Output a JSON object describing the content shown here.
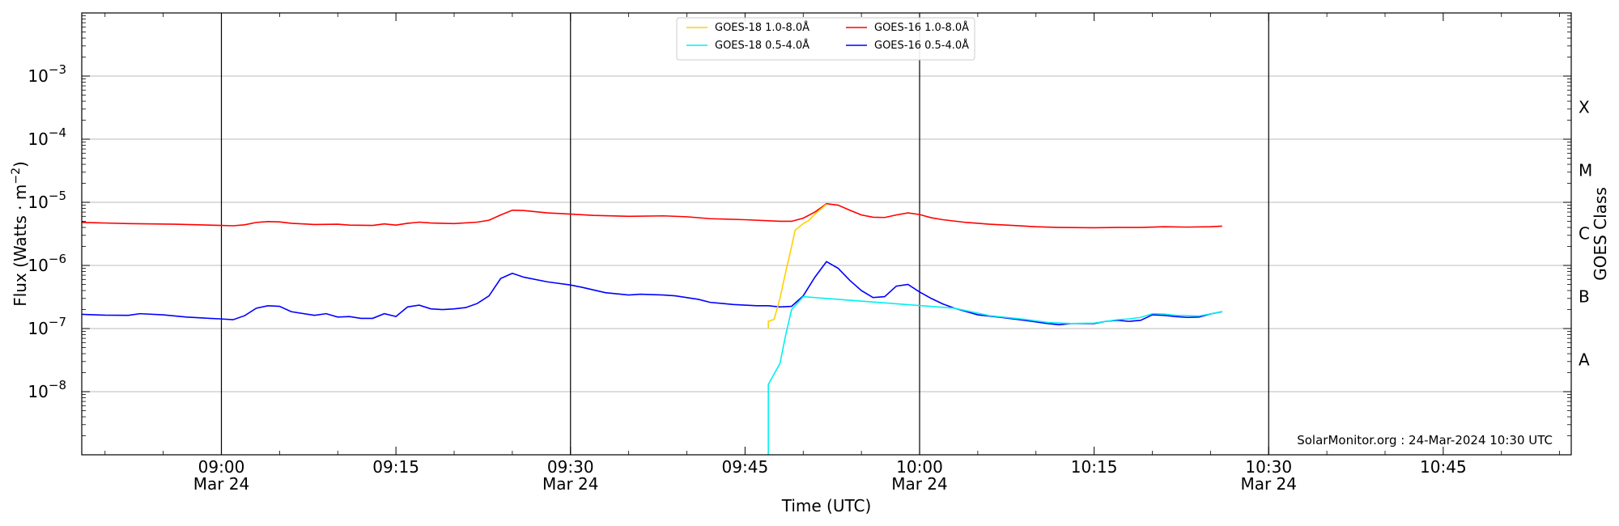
{
  "chart_data": {
    "type": "line",
    "title": "",
    "xlabel": "Time (UTC)",
    "ylabel_main": "Flux (Watts · m",
    "ylabel_exp": "−2",
    "ylabel_close": ")",
    "y2label": "GOES Class",
    "yscale": "log",
    "ylim": [
      1e-09,
      0.01
    ],
    "xlim": [
      "08:48",
      "10:56"
    ],
    "grid": "horizontal at decades; vertical at half-hours",
    "legend_position": "top-center",
    "credit": "SolarMonitor.org : 24-Mar-2024 10:30 UTC",
    "x_ticks": [
      {
        "time": "09:00",
        "label": "09:00",
        "sublabel": "Mar 24"
      },
      {
        "time": "09:15",
        "label": "09:15",
        "sublabel": ""
      },
      {
        "time": "09:30",
        "label": "09:30",
        "sublabel": "Mar 24"
      },
      {
        "time": "09:45",
        "label": "09:45",
        "sublabel": ""
      },
      {
        "time": "10:00",
        "label": "10:00",
        "sublabel": "Mar 24"
      },
      {
        "time": "10:15",
        "label": "10:15",
        "sublabel": ""
      },
      {
        "time": "10:30",
        "label": "10:30",
        "sublabel": "Mar 24"
      },
      {
        "time": "10:45",
        "label": "10:45",
        "sublabel": ""
      }
    ],
    "vertical_lines": [
      "09:00",
      "09:30",
      "10:00",
      "10:30"
    ],
    "y_ticks": [
      {
        "value": 1e-08,
        "base": "10",
        "exp": "−8"
      },
      {
        "value": 1e-07,
        "base": "10",
        "exp": "−7"
      },
      {
        "value": 1e-06,
        "base": "10",
        "exp": "−6"
      },
      {
        "value": 1e-05,
        "base": "10",
        "exp": "−5"
      },
      {
        "value": 0.0001,
        "base": "10",
        "exp": "−4"
      },
      {
        "value": 0.001,
        "base": "10",
        "exp": "−3"
      }
    ],
    "goes_classes": [
      {
        "label": "A",
        "value": 3.2e-08
      },
      {
        "label": "B",
        "value": 3.2e-07
      },
      {
        "label": "C",
        "value": 3.2e-06
      },
      {
        "label": "M",
        "value": 3.2e-05
      },
      {
        "label": "X",
        "value": 0.00032
      }
    ],
    "series": [
      {
        "name": "GOES-16 1.0-8.0Å",
        "color": "#ff0000",
        "points": [
          [
            "08:48",
            4.8e-06
          ],
          [
            "08:52",
            4.6e-06
          ],
          [
            "08:56",
            4.5e-06
          ],
          [
            "09:00",
            4.3e-06
          ],
          [
            "09:01",
            4.25e-06
          ],
          [
            "09:02",
            4.4e-06
          ],
          [
            "09:03",
            4.8e-06
          ],
          [
            "09:04",
            4.95e-06
          ],
          [
            "09:05",
            4.9e-06
          ],
          [
            "09:06",
            4.65e-06
          ],
          [
            "09:08",
            4.45e-06
          ],
          [
            "09:10",
            4.5e-06
          ],
          [
            "09:11",
            4.35e-06
          ],
          [
            "09:13",
            4.3e-06
          ],
          [
            "09:14",
            4.55e-06
          ],
          [
            "09:15",
            4.35e-06
          ],
          [
            "09:16",
            4.65e-06
          ],
          [
            "09:17",
            4.85e-06
          ],
          [
            "09:18",
            4.7e-06
          ],
          [
            "09:20",
            4.6e-06
          ],
          [
            "09:22",
            4.85e-06
          ],
          [
            "09:23",
            5.2e-06
          ],
          [
            "09:24",
            6.3e-06
          ],
          [
            "09:25",
            7.5e-06
          ],
          [
            "09:26",
            7.4e-06
          ],
          [
            "09:28",
            6.8e-06
          ],
          [
            "09:30",
            6.5e-06
          ],
          [
            "09:32",
            6.2e-06
          ],
          [
            "09:35",
            6e-06
          ],
          [
            "09:38",
            6.1e-06
          ],
          [
            "09:40",
            5.9e-06
          ],
          [
            "09:42",
            5.5e-06
          ],
          [
            "09:45",
            5.3e-06
          ],
          [
            "09:48",
            5e-06
          ],
          [
            "09:49",
            5e-06
          ],
          [
            "09:50",
            5.6e-06
          ],
          [
            "09:51",
            7e-06
          ],
          [
            "09:52",
            9.5e-06
          ],
          [
            "09:53",
            9e-06
          ],
          [
            "09:54",
            7.5e-06
          ],
          [
            "09:55",
            6.3e-06
          ],
          [
            "09:56",
            5.8e-06
          ],
          [
            "09:57",
            5.75e-06
          ],
          [
            "09:58",
            6.3e-06
          ],
          [
            "09:59",
            6.8e-06
          ],
          [
            "10:00",
            6.4e-06
          ],
          [
            "10:01",
            5.7e-06
          ],
          [
            "10:02",
            5.3e-06
          ],
          [
            "10:04",
            4.8e-06
          ],
          [
            "10:06",
            4.5e-06
          ],
          [
            "10:08",
            4.3e-06
          ],
          [
            "10:10",
            4.1e-06
          ],
          [
            "10:12",
            4e-06
          ],
          [
            "10:15",
            3.95e-06
          ],
          [
            "10:17",
            4e-06
          ],
          [
            "10:19",
            4e-06
          ],
          [
            "10:21",
            4.1e-06
          ],
          [
            "10:23",
            4.05e-06
          ],
          [
            "10:25",
            4.1e-06
          ],
          [
            "10:26",
            4.2e-06
          ]
        ]
      },
      {
        "name": "GOES-18 1.0-8.0Å",
        "color": "#ffd000",
        "points": [
          [
            "09:47",
            1e-07
          ],
          [
            "09:47",
            1.3e-07
          ],
          [
            "09:47.5",
            1.4e-07
          ],
          [
            "09:48",
            3e-07
          ],
          [
            "09:48.5",
            8e-07
          ],
          [
            "09:49",
            2e-06
          ],
          [
            "09:49.3",
            3.6e-06
          ],
          [
            "09:50",
            4.6e-06
          ],
          [
            "09:50.5",
            5.2e-06
          ],
          [
            "09:51",
            6.5e-06
          ],
          [
            "09:52",
            9.3e-06
          ]
        ]
      },
      {
        "name": "GOES-18 0.5-4.0Å",
        "color": "#00f0f0",
        "points": [
          [
            "09:47",
            1e-09
          ],
          [
            "09:47",
            1.3e-08
          ],
          [
            "09:48",
            2.8e-08
          ],
          [
            "09:48.5",
            8e-08
          ],
          [
            "09:49",
            2e-07
          ],
          [
            "09:50",
            3.2e-07
          ],
          [
            "10:03",
            2.1e-07
          ],
          [
            "10:06",
            1.6e-07
          ],
          [
            "10:09",
            1.4e-07
          ],
          [
            "10:11",
            1.25e-07
          ],
          [
            "10:13",
            1.2e-07
          ],
          [
            "10:15",
            1.22e-07
          ],
          [
            "10:17",
            1.38e-07
          ],
          [
            "10:18",
            1.42e-07
          ],
          [
            "10:19",
            1.5e-07
          ],
          [
            "10:20",
            1.72e-07
          ],
          [
            "10:21",
            1.7e-07
          ],
          [
            "10:22",
            1.62e-07
          ],
          [
            "10:23",
            1.6e-07
          ],
          [
            "10:24",
            1.58e-07
          ],
          [
            "10:26",
            1.85e-07
          ]
        ]
      },
      {
        "name": "GOES-16 0.5-4.0Å",
        "color": "#0000ff",
        "points": [
          [
            "08:48",
            1.68e-07
          ],
          [
            "08:50",
            1.63e-07
          ],
          [
            "08:52",
            1.62e-07
          ],
          [
            "08:53",
            1.72e-07
          ],
          [
            "08:55",
            1.65e-07
          ],
          [
            "08:57",
            1.52e-07
          ],
          [
            "08:59",
            1.45e-07
          ],
          [
            "09:00",
            1.42e-07
          ],
          [
            "09:01",
            1.38e-07
          ],
          [
            "09:02",
            1.6e-07
          ],
          [
            "09:03",
            2.1e-07
          ],
          [
            "09:04",
            2.3e-07
          ],
          [
            "09:05",
            2.25e-07
          ],
          [
            "09:06",
            1.85e-07
          ],
          [
            "09:08",
            1.62e-07
          ],
          [
            "09:09",
            1.72e-07
          ],
          [
            "09:10",
            1.52e-07
          ],
          [
            "09:11",
            1.55e-07
          ],
          [
            "09:12",
            1.45e-07
          ],
          [
            "09:13",
            1.45e-07
          ],
          [
            "09:14",
            1.72e-07
          ],
          [
            "09:15",
            1.55e-07
          ],
          [
            "09:16",
            2.2e-07
          ],
          [
            "09:17",
            2.35e-07
          ],
          [
            "09:18",
            2.05e-07
          ],
          [
            "09:19",
            2e-07
          ],
          [
            "09:20",
            2.05e-07
          ],
          [
            "09:21",
            2.15e-07
          ],
          [
            "09:22",
            2.5e-07
          ],
          [
            "09:23",
            3.3e-07
          ],
          [
            "09:24",
            6.2e-07
          ],
          [
            "09:25",
            7.5e-07
          ],
          [
            "09:26",
            6.5e-07
          ],
          [
            "09:28",
            5.5e-07
          ],
          [
            "09:30",
            4.9e-07
          ],
          [
            "09:31",
            4.5e-07
          ],
          [
            "09:33",
            3.7e-07
          ],
          [
            "09:35",
            3.4e-07
          ],
          [
            "09:36",
            3.5e-07
          ],
          [
            "09:38",
            3.4e-07
          ],
          [
            "09:39",
            3.3e-07
          ],
          [
            "09:41",
            2.9e-07
          ],
          [
            "09:42",
            2.6e-07
          ],
          [
            "09:44",
            2.4e-07
          ],
          [
            "09:45",
            2.35e-07
          ],
          [
            "09:46",
            2.3e-07
          ],
          [
            "09:47",
            2.3e-07
          ],
          [
            "09:48",
            2.2e-07
          ],
          [
            "09:49",
            2.25e-07
          ],
          [
            "09:50",
            3.3e-07
          ],
          [
            "09:51",
            6.5e-07
          ],
          [
            "09:52",
            1.15e-06
          ],
          [
            "09:53",
            9e-07
          ],
          [
            "09:54",
            5.8e-07
          ],
          [
            "09:55",
            4e-07
          ],
          [
            "09:56",
            3.1e-07
          ],
          [
            "09:57",
            3.2e-07
          ],
          [
            "09:58",
            4.7e-07
          ],
          [
            "09:59",
            5e-07
          ],
          [
            "10:00",
            3.8e-07
          ],
          [
            "10:01",
            3e-07
          ],
          [
            "10:02",
            2.45e-07
          ],
          [
            "10:03",
            2.1e-07
          ],
          [
            "10:05",
            1.65e-07
          ],
          [
            "10:07",
            1.5e-07
          ],
          [
            "10:09",
            1.35e-07
          ],
          [
            "10:11",
            1.2e-07
          ],
          [
            "10:12",
            1.15e-07
          ],
          [
            "10:13",
            1.2e-07
          ],
          [
            "10:15",
            1.2e-07
          ],
          [
            "10:16",
            1.3e-07
          ],
          [
            "10:17",
            1.35e-07
          ],
          [
            "10:18",
            1.3e-07
          ],
          [
            "10:19",
            1.35e-07
          ],
          [
            "10:20",
            1.65e-07
          ],
          [
            "10:21",
            1.62e-07
          ],
          [
            "10:22",
            1.55e-07
          ],
          [
            "10:23",
            1.5e-07
          ],
          [
            "10:24",
            1.52e-07
          ],
          [
            "10:25",
            1.7e-07
          ],
          [
            "10:26",
            1.85e-07
          ]
        ]
      }
    ],
    "legend_order": [
      1,
      2,
      0,
      3
    ]
  }
}
